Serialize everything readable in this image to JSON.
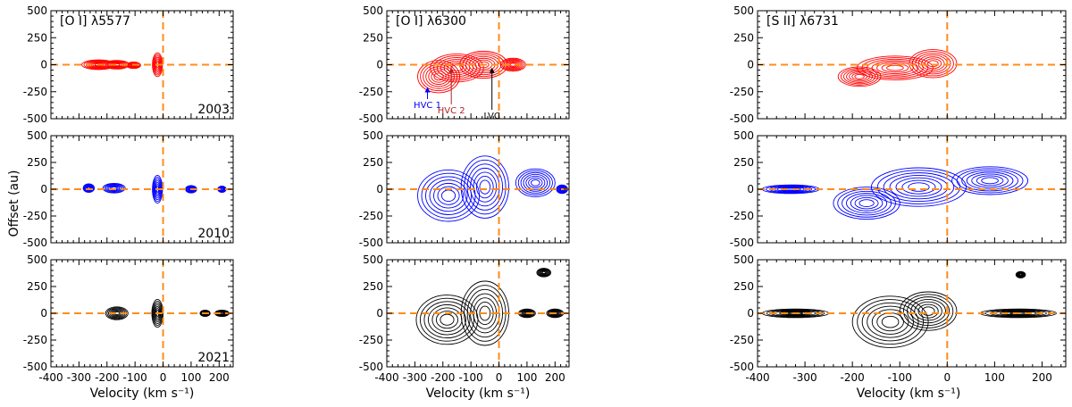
{
  "chart_data": {
    "type": "contour",
    "ylabel": "Offset (au)",
    "xlabel": "Velocity (km s⁻¹)",
    "xlim": [
      -400,
      250
    ],
    "ylim": [
      -500,
      500
    ],
    "xticks": [
      -400,
      -300,
      -200,
      -100,
      0,
      100,
      200
    ],
    "yticks": [
      -500,
      -250,
      0,
      250,
      500
    ],
    "reference_lines": {
      "velocity": 0,
      "offset": 0,
      "color": "#ff8c1a"
    },
    "columns": [
      {
        "line": "[O I] λ5577"
      },
      {
        "line": "[O I] λ6300"
      },
      {
        "line": "[S II] λ6731"
      }
    ],
    "rows": [
      {
        "year": "2003",
        "color": "#ff0000"
      },
      {
        "year": "2010",
        "color": "#0000ff"
      },
      {
        "year": "2021",
        "color": "#000000"
      }
    ],
    "annotations": [
      {
        "label": "HVC 1",
        "velocity": -255,
        "offset": -190,
        "color": "#0000ff"
      },
      {
        "label": "HVC 2",
        "velocity": -170,
        "offset": -10,
        "color": "#b22222"
      },
      {
        "label": "LVC",
        "velocity": -25,
        "offset": -10,
        "color": "#000000"
      }
    ],
    "emission": [
      [
        {
          "blobs": [
            {
              "v": -230,
              "o": 0,
              "rv": 60,
              "ro": 45
            },
            {
              "v": -165,
              "o": 0,
              "rv": 45,
              "ro": 40
            },
            {
              "v": -105,
              "o": -5,
              "rv": 25,
              "ro": 30
            },
            {
              "v": -20,
              "o": 0,
              "rv": 18,
              "ro": 110
            }
          ]
        },
        {
          "blobs": [
            {
              "v": -265,
              "o": 10,
              "rv": 20,
              "ro": 40
            },
            {
              "v": -175,
              "o": 10,
              "rv": 40,
              "ro": 45
            },
            {
              "v": -20,
              "o": 0,
              "rv": 18,
              "ro": 130
            },
            {
              "v": 100,
              "o": 0,
              "rv": 20,
              "ro": 35
            },
            {
              "v": 210,
              "o": 0,
              "rv": 15,
              "ro": 30
            }
          ]
        },
        {
          "blobs": [
            {
              "v": -165,
              "o": 0,
              "rv": 40,
              "ro": 60
            },
            {
              "v": -20,
              "o": 0,
              "rv": 20,
              "ro": 130
            },
            {
              "v": 150,
              "o": 0,
              "rv": 18,
              "ro": 30
            },
            {
              "v": 210,
              "o": 0,
              "rv": 25,
              "ro": 30
            }
          ]
        }
      ],
      [
        {
          "blobs": [
            {
              "v": -215,
              "o": -110,
              "rv": 75,
              "ro": 150
            },
            {
              "v": -150,
              "o": -30,
              "rv": 95,
              "ro": 130
            },
            {
              "v": -55,
              "o": 0,
              "rv": 85,
              "ro": 125
            },
            {
              "v": 50,
              "o": 0,
              "rv": 45,
              "ro": 60
            }
          ]
        },
        {
          "blobs": [
            {
              "v": -180,
              "o": -60,
              "rv": 110,
              "ro": 240
            },
            {
              "v": -50,
              "o": 20,
              "rv": 85,
              "ro": 290
            },
            {
              "v": 130,
              "o": 60,
              "rv": 70,
              "ro": 130
            },
            {
              "v": 225,
              "o": 0,
              "rv": 20,
              "ro": 40
            }
          ]
        },
        {
          "blobs": [
            {
              "v": -185,
              "o": -60,
              "rv": 110,
              "ro": 230
            },
            {
              "v": -50,
              "o": 0,
              "rv": 85,
              "ro": 300
            },
            {
              "v": 160,
              "o": 380,
              "rv": 25,
              "ro": 40
            },
            {
              "v": 100,
              "o": 0,
              "rv": 30,
              "ro": 40
            },
            {
              "v": 200,
              "o": 0,
              "rv": 30,
              "ro": 40
            }
          ]
        }
      ],
      [
        {
          "blobs": [
            {
              "v": -185,
              "o": -110,
              "rv": 45,
              "ro": 90
            },
            {
              "v": -110,
              "o": -30,
              "rv": 80,
              "ro": 110
            },
            {
              "v": -30,
              "o": 10,
              "rv": 50,
              "ro": 130
            }
          ]
        },
        {
          "blobs": [
            {
              "v": -170,
              "o": -130,
              "rv": 70,
              "ro": 150
            },
            {
              "v": -60,
              "o": 20,
              "rv": 100,
              "ro": 180
            },
            {
              "v": 90,
              "o": 80,
              "rv": 80,
              "ro": 130
            },
            {
              "v": -330,
              "o": 0,
              "rv": 60,
              "ro": 40
            }
          ]
        },
        {
          "blobs": [
            {
              "v": -120,
              "o": -80,
              "rv": 80,
              "ro": 240
            },
            {
              "v": -40,
              "o": 20,
              "rv": 60,
              "ro": 180
            },
            {
              "v": -320,
              "o": 0,
              "rv": 70,
              "ro": 40
            },
            {
              "v": 150,
              "o": 0,
              "rv": 80,
              "ro": 40
            },
            {
              "v": 155,
              "o": 360,
              "rv": 10,
              "ro": 30
            }
          ]
        }
      ]
    ]
  }
}
